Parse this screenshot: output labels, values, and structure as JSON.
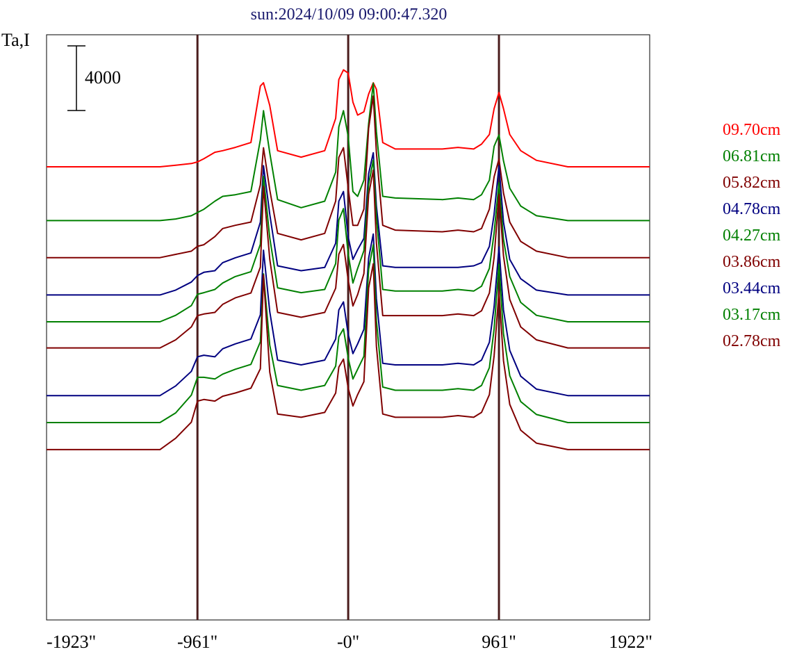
{
  "chart_data": {
    "type": "line",
    "title": "sun:2024/10/09 09:00:47.320",
    "ylabel": "Ta,I",
    "scale_bar_label": "4000",
    "xlim": [
      -1923,
      1922
    ],
    "x_ticks": [
      {
        "value": -1923,
        "label": "-1923\""
      },
      {
        "value": -961,
        "label": "-961\""
      },
      {
        "value": 0,
        "label": "-0\""
      },
      {
        "value": 961,
        "label": "961\""
      },
      {
        "value": 1922,
        "label": "1922\""
      }
    ],
    "vlines": [
      -961,
      0,
      961
    ],
    "colors": {
      "title": "#1a1a6e",
      "vline": "#4a1c1c",
      "axis": "#000000"
    },
    "x": [
      -1923,
      -1600,
      -1400,
      -1200,
      -1100,
      -1000,
      -961,
      -920,
      -850,
      -800,
      -720,
      -620,
      -560,
      -540,
      -500,
      -450,
      -300,
      -150,
      -80,
      -60,
      -30,
      0,
      30,
      60,
      100,
      130,
      160,
      180,
      220,
      300,
      600,
      700,
      800,
      850,
      900,
      930,
      961,
      990,
      1030,
      1100,
      1200,
      1400,
      1922
    ],
    "series": [
      {
        "name": "09.70cm",
        "color": "#ff0000",
        "baseline": 0,
        "values": [
          0,
          0,
          0,
          0,
          100,
          200,
          300,
          500,
          900,
          1000,
          1200,
          1500,
          5000,
          5200,
          3800,
          1000,
          600,
          1000,
          3000,
          5400,
          6000,
          5800,
          4000,
          3200,
          3400,
          4500,
          5200,
          4800,
          1500,
          1100,
          1100,
          1200,
          1100,
          1400,
          2000,
          3600,
          4600,
          3600,
          2000,
          1000,
          400,
          0,
          0
        ]
      },
      {
        "name": "06.81cm",
        "color": "#008000",
        "baseline": -3330,
        "values": [
          0,
          0,
          0,
          0,
          100,
          300,
          500,
          700,
          1200,
          1500,
          1600,
          1800,
          5000,
          6800,
          4200,
          1300,
          800,
          1200,
          3000,
          5800,
          6800,
          5200,
          1800,
          1500,
          2500,
          6000,
          8500,
          5500,
          1500,
          1400,
          1300,
          1400,
          1300,
          1600,
          2500,
          4600,
          5300,
          3700,
          2000,
          900,
          300,
          0,
          0
        ]
      },
      {
        "name": "05.82cm",
        "color": "#800000",
        "baseline": -5620,
        "values": [
          0,
          0,
          0,
          0,
          200,
          400,
          700,
          800,
          1300,
          1800,
          2000,
          2200,
          4500,
          6800,
          4200,
          1500,
          1100,
          1500,
          3500,
          6200,
          6800,
          4300,
          2000,
          2000,
          3000,
          8000,
          10000,
          6500,
          2000,
          1700,
          1600,
          1700,
          1600,
          1800,
          3000,
          5000,
          6100,
          4000,
          2200,
          1000,
          400,
          0,
          0
        ]
      },
      {
        "name": "04.78cm",
        "color": "#000080",
        "baseline": -7930,
        "values": [
          0,
          0,
          0,
          0,
          300,
          800,
          1200,
          1400,
          1500,
          2000,
          2300,
          2600,
          4500,
          8000,
          5000,
          1800,
          1500,
          1700,
          3200,
          5800,
          6400,
          3600,
          2200,
          2800,
          3500,
          7500,
          8800,
          5500,
          1800,
          1700,
          1700,
          1700,
          1800,
          2000,
          3000,
          5000,
          8000,
          4500,
          2200,
          1000,
          300,
          0,
          0
        ]
      },
      {
        "name": "04.27cm",
        "color": "#008000",
        "baseline": -9590,
        "values": [
          0,
          0,
          0,
          0,
          400,
          1000,
          1700,
          1800,
          2000,
          2400,
          2800,
          3100,
          4800,
          9000,
          5200,
          2100,
          1800,
          2000,
          3600,
          6300,
          7000,
          4200,
          2400,
          3300,
          4400,
          8500,
          10000,
          6500,
          2000,
          1900,
          1900,
          2000,
          1900,
          2200,
          3300,
          5500,
          8600,
          5100,
          2800,
          1200,
          400,
          0,
          0
        ]
      },
      {
        "name": "03.86cm",
        "color": "#800000",
        "baseline": -11210,
        "values": [
          0,
          0,
          0,
          0,
          500,
          1300,
          2000,
          2100,
          2200,
          2700,
          3100,
          3400,
          5000,
          10000,
          5500,
          2200,
          1900,
          2200,
          3700,
          5800,
          6400,
          4200,
          2600,
          3300,
          4600,
          9500,
          11000,
          6500,
          2000,
          2000,
          2000,
          2100,
          2000,
          2300,
          3400,
          5600,
          9500,
          5700,
          3000,
          1300,
          500,
          0,
          0
        ]
      },
      {
        "name": "03.44cm",
        "color": "#000080",
        "baseline": -14160,
        "values": [
          0,
          0,
          0,
          0,
          600,
          1500,
          2400,
          2500,
          2400,
          2900,
          3200,
          3500,
          5000,
          9000,
          5200,
          2200,
          1900,
          2200,
          3500,
          5300,
          5800,
          3800,
          2600,
          3200,
          4100,
          8500,
          10000,
          6000,
          2000,
          1900,
          1900,
          2000,
          1900,
          2200,
          3300,
          5500,
          9200,
          5300,
          2800,
          1200,
          400,
          0,
          0
        ]
      },
      {
        "name": "03.17cm",
        "color": "#008000",
        "baseline": -15830,
        "values": [
          0,
          0,
          0,
          0,
          600,
          1700,
          2800,
          2800,
          2700,
          3000,
          3300,
          3600,
          5000,
          9200,
          4800,
          2300,
          2000,
          2300,
          3500,
          5300,
          5800,
          4000,
          2700,
          3300,
          4100,
          9500,
          11000,
          6300,
          2200,
          2000,
          2000,
          2100,
          2000,
          2300,
          3400,
          5800,
          9800,
          5500,
          2900,
          1300,
          500,
          0,
          0
        ]
      },
      {
        "name": "02.78cm",
        "color": "#800000",
        "baseline": -17500,
        "values": [
          0,
          0,
          0,
          0,
          700,
          1700,
          3000,
          3100,
          3000,
          3300,
          3500,
          3800,
          5000,
          10800,
          4800,
          2200,
          2000,
          2300,
          3500,
          5100,
          5600,
          3800,
          2700,
          3400,
          4200,
          10000,
          11500,
          6400,
          2200,
          2000,
          2000,
          2100,
          2000,
          2300,
          3400,
          5800,
          9800,
          5500,
          2800,
          1200,
          400,
          0,
          0
        ]
      }
    ]
  }
}
